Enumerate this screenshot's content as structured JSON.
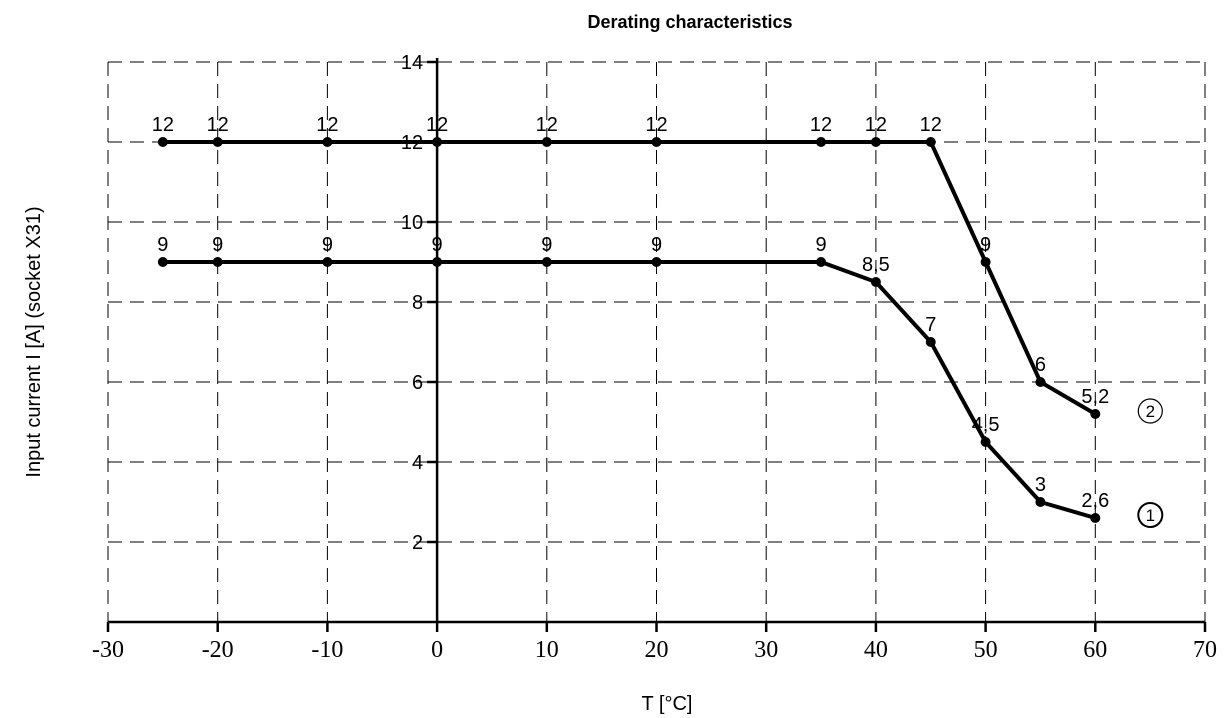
{
  "chart_data": {
    "type": "line",
    "title": "Derating characteristics",
    "xlabel": "T [°C]",
    "ylabel": "Input current I [A] (socket X31)",
    "xlim": [
      -30,
      70
    ],
    "ylim": [
      0,
      14
    ],
    "xticks": [
      "-30",
      "-20",
      "-10",
      "0",
      "10",
      "20",
      "30",
      "40",
      "50",
      "60",
      "70"
    ],
    "yticks": [
      "2",
      "4",
      "6",
      "8",
      "10",
      "12",
      "14"
    ],
    "grid": true,
    "series": [
      {
        "name": "1",
        "x": [
          -25,
          -20,
          -10,
          0,
          10,
          20,
          35,
          40,
          45,
          50,
          55,
          60
        ],
        "y": [
          9,
          9,
          9,
          9,
          9,
          9,
          9,
          8.5,
          7,
          4.5,
          3,
          2.6
        ],
        "labels": [
          "9",
          "9",
          "9",
          "9",
          "9",
          "9",
          "9",
          "8,5",
          "7",
          "4,5",
          "3",
          "2,6"
        ],
        "marker_label": "1"
      },
      {
        "name": "2",
        "x": [
          -25,
          -20,
          -10,
          0,
          10,
          20,
          35,
          40,
          45,
          50,
          55,
          60
        ],
        "y": [
          12,
          12,
          12,
          12,
          12,
          12,
          12,
          12,
          12,
          9,
          6,
          5.2
        ],
        "labels": [
          "12",
          "12",
          "12",
          "12",
          "12",
          "12",
          "12",
          "12",
          "12",
          "9",
          "6",
          "5,2"
        ],
        "marker_label": "2"
      }
    ]
  }
}
